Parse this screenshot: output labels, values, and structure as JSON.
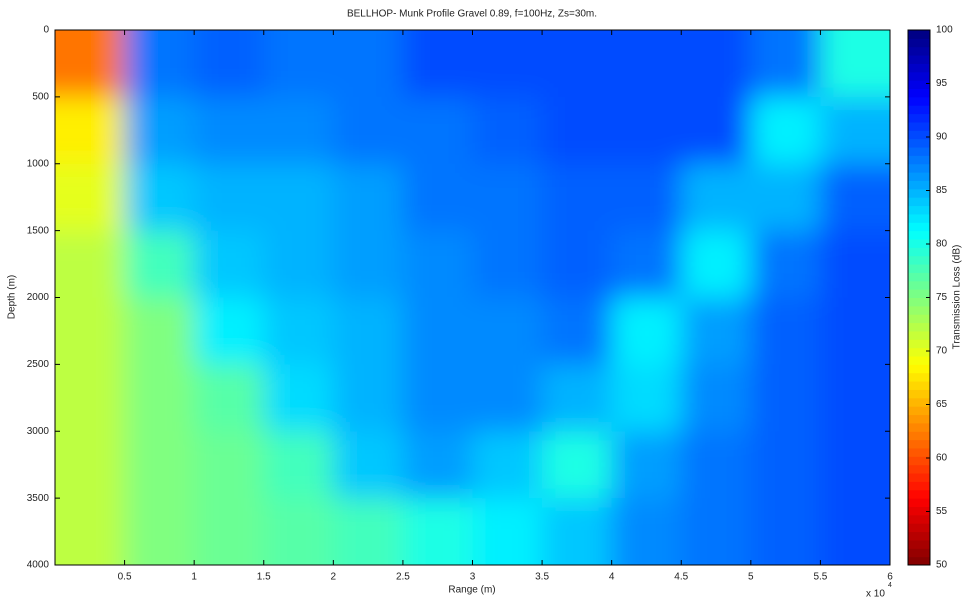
{
  "chart_data": {
    "type": "heatmap",
    "title": "BELLHOP- Munk Profile Gravel 0.89, f=100Hz, Zs=30m.",
    "x_label": "Range (m)",
    "y_label": "Depth (m)",
    "colorbar_label": "Transmission Loss (dB)",
    "x_multiplier": {
      "base": "x 10",
      "exponent": "4"
    },
    "x": [
      2500,
      7500,
      12500,
      17500,
      22500,
      27500,
      32500,
      37500,
      42500,
      47500,
      52500,
      57500
    ],
    "y": [
      250,
      750,
      1250,
      1750,
      2250,
      2750,
      3250,
      3750
    ],
    "values": [
      [
        62,
        88,
        89,
        88,
        88,
        90,
        90,
        90,
        90,
        90,
        88,
        80
      ],
      [
        68,
        86,
        87,
        87,
        88,
        88,
        89,
        90,
        90,
        90,
        82,
        85
      ],
      [
        70,
        84,
        85,
        85,
        86,
        88,
        88,
        89,
        89,
        85,
        85,
        89
      ],
      [
        72,
        78,
        84,
        85,
        86,
        87,
        88,
        89,
        88,
        82,
        88,
        90
      ],
      [
        72,
        75,
        82,
        84,
        85,
        87,
        87,
        88,
        82,
        86,
        89,
        90
      ],
      [
        72,
        75,
        77,
        83,
        85,
        87,
        87,
        85,
        83,
        87,
        89,
        90
      ],
      [
        72,
        75,
        76,
        78,
        84,
        86,
        84,
        80,
        86,
        88,
        89,
        90
      ],
      [
        72,
        75,
        76,
        77,
        78,
        80,
        82,
        84,
        87,
        88,
        89,
        90
      ]
    ],
    "xlim": [
      0,
      60000
    ],
    "xticks": [
      {
        "value": 5000,
        "label": "0.5"
      },
      {
        "value": 10000,
        "label": "1"
      },
      {
        "value": 15000,
        "label": "1.5"
      },
      {
        "value": 20000,
        "label": "2"
      },
      {
        "value": 25000,
        "label": "2.5"
      },
      {
        "value": 30000,
        "label": "3"
      },
      {
        "value": 35000,
        "label": "3.5"
      },
      {
        "value": 40000,
        "label": "4"
      },
      {
        "value": 45000,
        "label": "4.5"
      },
      {
        "value": 50000,
        "label": "5"
      },
      {
        "value": 55000,
        "label": "5.5"
      },
      {
        "value": 60000,
        "label": "6"
      }
    ],
    "ylim": [
      0,
      4000
    ],
    "y_reversed": true,
    "yticks": [
      0,
      500,
      1000,
      1500,
      2000,
      2500,
      3000,
      3500,
      4000
    ],
    "colormap": "jet_reversed",
    "clim": [
      50,
      100
    ],
    "cticks": [
      50,
      55,
      60,
      65,
      70,
      75,
      80,
      85,
      90,
      95,
      100
    ]
  }
}
